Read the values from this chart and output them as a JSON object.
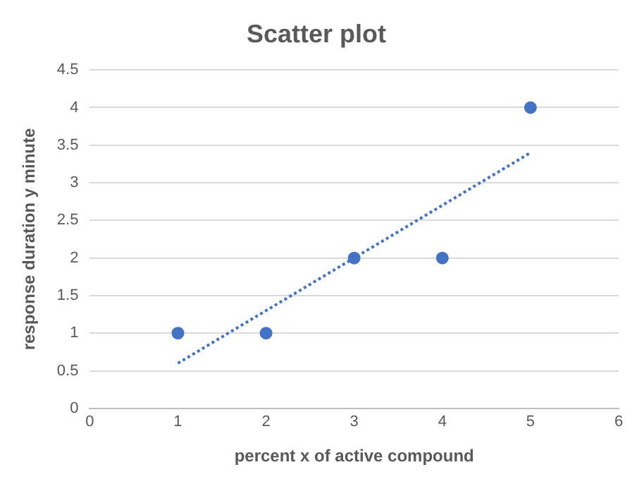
{
  "chart_data": {
    "type": "scatter",
    "title": "Scatter plot",
    "xlabel": "percent x of active compound",
    "ylabel": "response duration y minute",
    "x": [
      1,
      2,
      3,
      4,
      5
    ],
    "series": [
      {
        "color": "#4472c4",
        "values": [
          1,
          1,
          2,
          2,
          4
        ],
        "marker": "circle"
      },
      {
        "type": "line",
        "x": [
          1,
          5
        ],
        "values": [
          0.6,
          3.4
        ],
        "color": "#4472c4",
        "line_style": "dotted",
        "marker": "none"
      }
    ],
    "xlim": [
      0,
      6
    ],
    "xticks": [
      0,
      1,
      2,
      3,
      4,
      5,
      6
    ],
    "ylim": [
      0,
      4.5
    ],
    "yticks": [
      0,
      0.5,
      1,
      1.5,
      2,
      2.5,
      3,
      3.5,
      4,
      4.5
    ],
    "grid": "y",
    "legend": false
  }
}
